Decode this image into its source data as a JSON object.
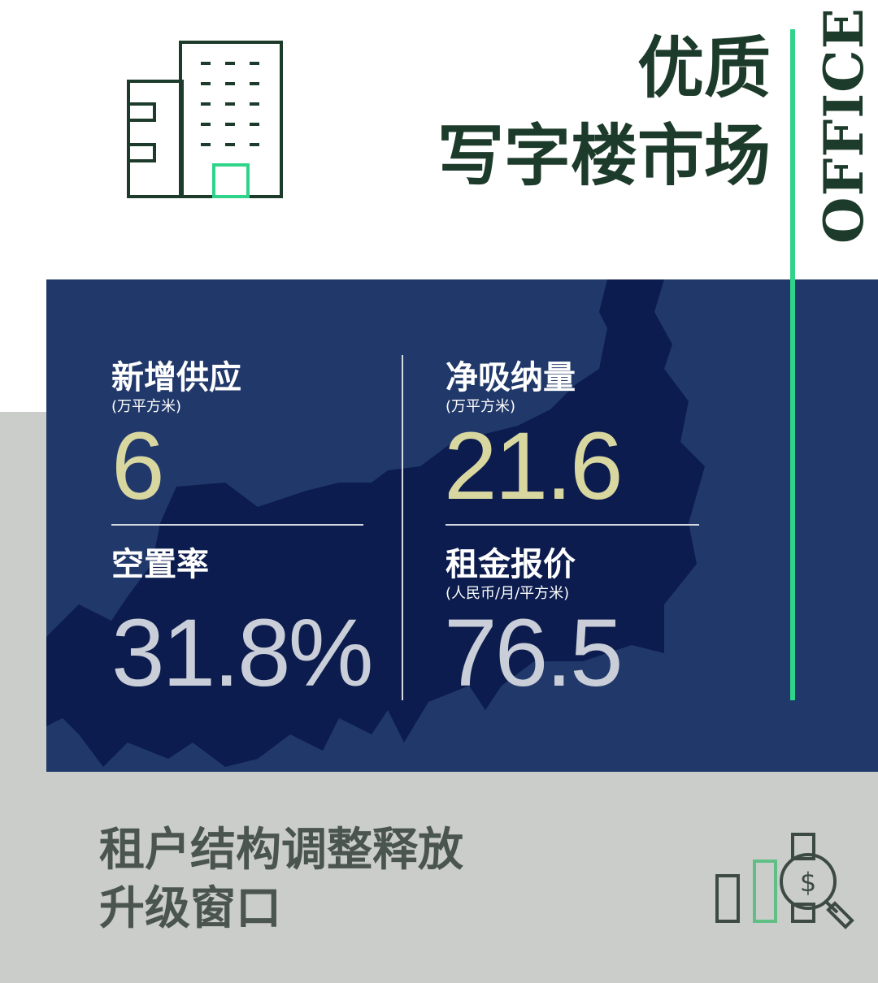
{
  "header": {
    "title_line1": "优质",
    "title_line2": "写字楼市场",
    "side_label": "OFFICE"
  },
  "stats": [
    {
      "label": "新增供应",
      "unit": "(万平方米)",
      "value": "6"
    },
    {
      "label": "净吸纳量",
      "unit": "(万平方米)",
      "value": "21.6"
    },
    {
      "label": "空置率",
      "value": "31.8%"
    },
    {
      "label": "租金报价",
      "unit": "(人民币/月/平方米)",
      "value": "76.5"
    }
  ],
  "footer": {
    "line1": "租户结构调整释放",
    "line2": "升级窗口"
  },
  "colors": {
    "title": "#1d3b2a",
    "accent_green": "#2fd38a",
    "panel_navy": "#0c1c4e",
    "map_light": "#21386a",
    "value_gold": "#d9d7a0",
    "gray_bg": "#cbcdca"
  },
  "icons": [
    "office-building-icon",
    "bar-chart-dollar-magnifier-icon"
  ]
}
